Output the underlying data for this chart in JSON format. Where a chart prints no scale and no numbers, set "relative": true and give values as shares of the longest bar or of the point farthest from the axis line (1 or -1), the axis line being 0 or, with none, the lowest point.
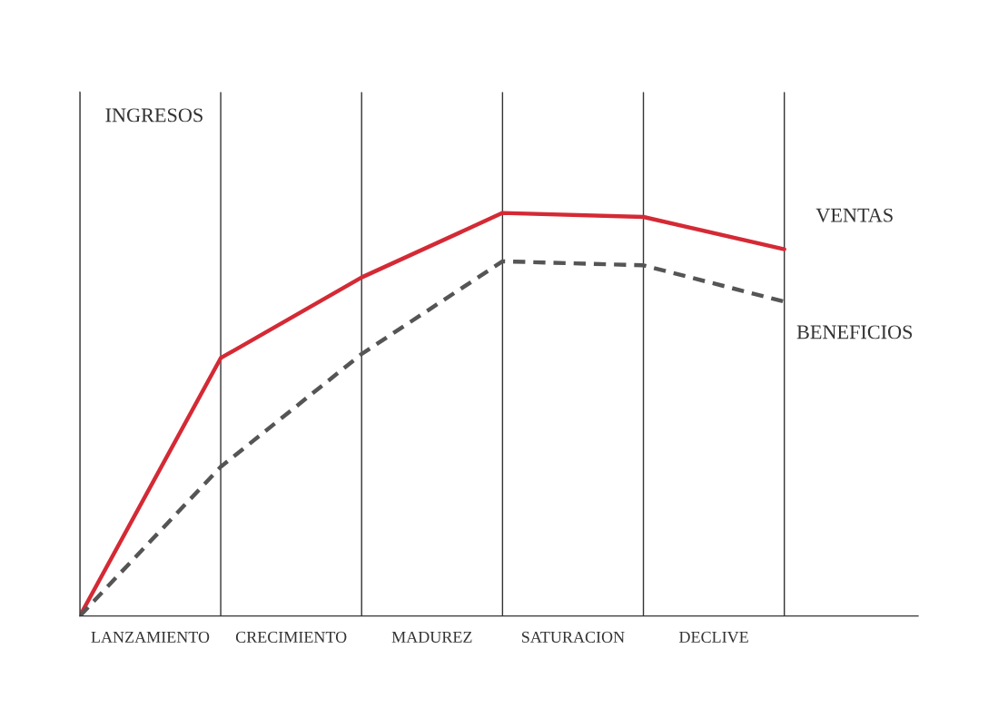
{
  "chart_data": {
    "type": "line",
    "relative": true,
    "categories": [
      null,
      null,
      null,
      null,
      null,
      null
    ],
    "series": [
      {
        "name": "VENTAS",
        "color": "#d42a35",
        "line_style": "solid",
        "values": [
          0,
          0.64,
          0.84,
          1,
          0.99,
          0.91
        ]
      },
      {
        "name": "BENEFICIOS",
        "color": "#555555",
        "line_style": "dashed",
        "values": [
          0,
          0.37,
          0.65,
          0.88,
          0.87,
          0.78
        ]
      }
    ],
    "annotations": [
      "INGRESOS",
      "LANZAMIENTO",
      "CRECIMIENTO",
      "MADUREZ",
      "SATURACION",
      "DECLIVE"
    ],
    "grid": "x",
    "legend": false,
    "marker": "none"
  }
}
